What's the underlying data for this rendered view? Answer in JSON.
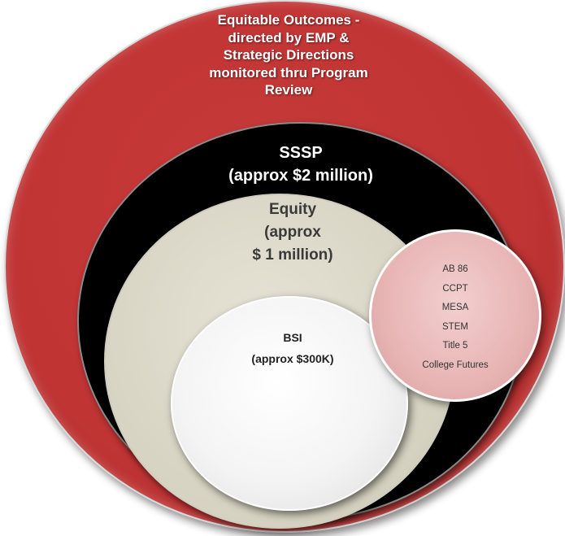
{
  "diagram": {
    "outer": {
      "lines": [
        "Equitable Outcomes -",
        "directed by EMP &",
        "Strategic Directions",
        "monitored thru Program",
        "Review"
      ],
      "color": "#c03434"
    },
    "sssp": {
      "title": "SSSP",
      "amount": "(approx $2 million)",
      "color": "#000000"
    },
    "equity": {
      "title": "Equity",
      "amount_line1": "(approx",
      "amount_line2": "$ 1 million)",
      "color": "#d6d2c1"
    },
    "bsi": {
      "title": "BSI",
      "amount": "(approx $300K)",
      "color": "#f4f4f4"
    },
    "programs": {
      "items": [
        "AB 86",
        "CCPT",
        "MESA",
        "STEM",
        "Title 5",
        "College Futures"
      ],
      "color": "#e8b4b4"
    }
  }
}
